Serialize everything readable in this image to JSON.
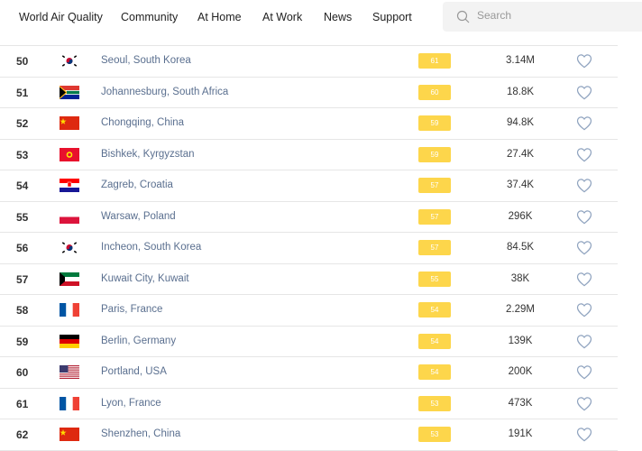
{
  "nav": {
    "items": [
      "World Air Quality",
      "Community",
      "At Home",
      "At Work",
      "News",
      "Support"
    ]
  },
  "search": {
    "placeholder": "Search",
    "value": ""
  },
  "colors": {
    "aqi_badge": "#fdd64b",
    "city_link": "#5a6f8f"
  },
  "rows": [
    {
      "rank": "50",
      "flag": "south-korea",
      "city": "Seoul, South Korea",
      "aqi": "61",
      "followers": "3.14M"
    },
    {
      "rank": "51",
      "flag": "south-africa",
      "city": "Johannesburg, South Africa",
      "aqi": "60",
      "followers": "18.8K"
    },
    {
      "rank": "52",
      "flag": "china",
      "city": "Chongqing, China",
      "aqi": "59",
      "followers": "94.8K"
    },
    {
      "rank": "53",
      "flag": "kyrgyzstan",
      "city": "Bishkek, Kyrgyzstan",
      "aqi": "59",
      "followers": "27.4K"
    },
    {
      "rank": "54",
      "flag": "croatia",
      "city": "Zagreb, Croatia",
      "aqi": "57",
      "followers": "37.4K"
    },
    {
      "rank": "55",
      "flag": "poland",
      "city": "Warsaw, Poland",
      "aqi": "57",
      "followers": "296K"
    },
    {
      "rank": "56",
      "flag": "south-korea",
      "city": "Incheon, South Korea",
      "aqi": "57",
      "followers": "84.5K"
    },
    {
      "rank": "57",
      "flag": "kuwait",
      "city": "Kuwait City, Kuwait",
      "aqi": "55",
      "followers": "38K"
    },
    {
      "rank": "58",
      "flag": "france",
      "city": "Paris, France",
      "aqi": "54",
      "followers": "2.29M"
    },
    {
      "rank": "59",
      "flag": "germany",
      "city": "Berlin, Germany",
      "aqi": "54",
      "followers": "139K"
    },
    {
      "rank": "60",
      "flag": "usa",
      "city": "Portland, USA",
      "aqi": "54",
      "followers": "200K"
    },
    {
      "rank": "61",
      "flag": "france",
      "city": "Lyon, France",
      "aqi": "53",
      "followers": "473K"
    },
    {
      "rank": "62",
      "flag": "china",
      "city": "Shenzhen, China",
      "aqi": "53",
      "followers": "191K"
    }
  ]
}
